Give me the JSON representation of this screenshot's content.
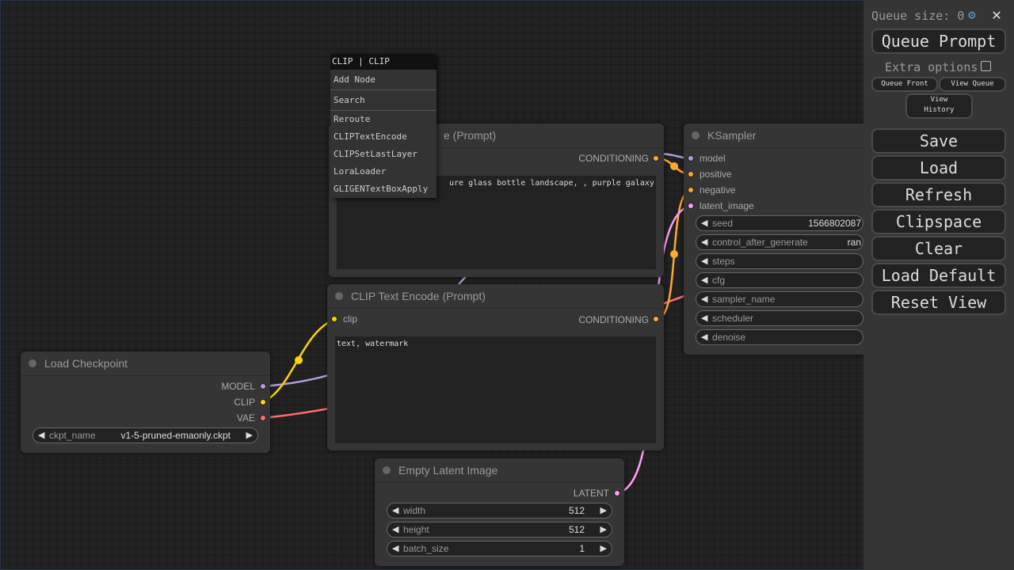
{
  "context_menu": {
    "header": "CLIP | CLIP",
    "items": [
      "Add Node",
      "Search",
      "Reroute",
      "CLIPTextEncode",
      "CLIPSetLastLayer",
      "LoraLoader",
      "GLIGENTextBoxApply"
    ]
  },
  "nodes": {
    "clip_top": {
      "title": "e (Prompt)",
      "output": "CONDITIONING",
      "text": "ure glass bottle landscape, , purple galaxy"
    },
    "clip_bottom": {
      "title": "CLIP Text Encode (Prompt)",
      "input": "clip",
      "output": "CONDITIONING",
      "text": "text, watermark"
    },
    "load_checkpoint": {
      "title": "Load Checkpoint",
      "outputs": [
        "MODEL",
        "CLIP",
        "VAE"
      ],
      "widget": {
        "name": "ckpt_name",
        "value": "v1-5-pruned-emaonly.ckpt"
      }
    },
    "empty_latent": {
      "title": "Empty Latent Image",
      "output": "LATENT",
      "widgets": [
        {
          "name": "width",
          "value": "512"
        },
        {
          "name": "height",
          "value": "512"
        },
        {
          "name": "batch_size",
          "value": "1"
        }
      ]
    },
    "ksampler": {
      "title": "KSampler",
      "inputs": [
        "model",
        "positive",
        "negative",
        "latent_image"
      ],
      "widgets": [
        {
          "name": "seed",
          "value": "1566802087"
        },
        {
          "name": "control_after_generate",
          "value": "ran"
        },
        {
          "name": "steps",
          "value": ""
        },
        {
          "name": "cfg",
          "value": ""
        },
        {
          "name": "sampler_name",
          "value": ""
        },
        {
          "name": "scheduler",
          "value": ""
        },
        {
          "name": "denoise",
          "value": ""
        }
      ]
    }
  },
  "colors": {
    "model": "#b39ddb",
    "clip": "#ffd500",
    "vae": "#ff6e6e",
    "conditioning": "#ffa931",
    "latent": "#ff9cf9"
  },
  "sidebar": {
    "queue_size_label": "Queue size: 0",
    "queue_prompt": "Queue Prompt",
    "extra_options": "Extra options",
    "queue_front": "Queue Front",
    "view_queue": "View Queue",
    "view_history": "View History",
    "buttons": [
      "Save",
      "Load",
      "Refresh",
      "Clipspace",
      "Clear",
      "Load Default",
      "Reset View"
    ]
  }
}
